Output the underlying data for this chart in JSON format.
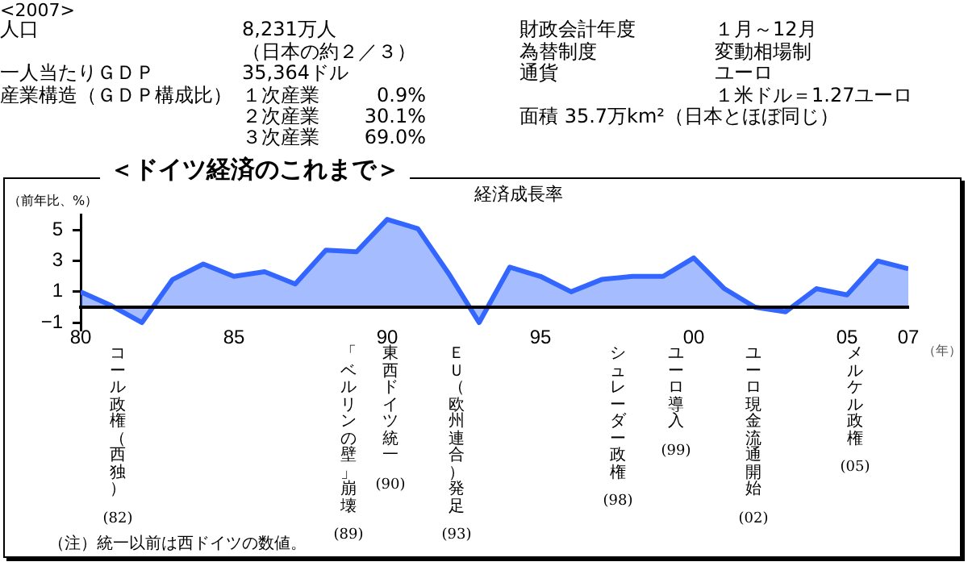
{
  "chart_data": [
    {
      "type": "other",
      "title": "<2007>",
      "annotations": [
        "人口",
        "8,231万人",
        "（日本の約２／３）",
        "一人当たりＧＤＰ",
        "35,364ドル",
        "産業構造（ＧＤＰ構成比）",
        "１次産業",
        "0.9%",
        "２次産業",
        "30.1%",
        "３次産業",
        "69.0%",
        "財政会計年度",
        "１月～12月",
        "為替制度",
        "変動相場制",
        "通貨",
        "ユーロ",
        "１米ドル＝1.27ユーロ",
        "面積 35.7万km²（日本とほぼ同じ）"
      ]
    },
    {
      "type": "area",
      "title": "＜ドイツ経済のこれまで＞",
      "subtitle": "経済成長率",
      "ylabel": "（前年比、%）",
      "xlabel": "（年）",
      "x": [
        1980,
        1981,
        1982,
        1983,
        1984,
        1985,
        1986,
        1987,
        1988,
        1989,
        1990,
        1991,
        1992,
        1993,
        1994,
        1995,
        1996,
        1997,
        1998,
        1999,
        2000,
        2001,
        2002,
        2003,
        2004,
        2005,
        2006,
        2007
      ],
      "series": [
        {
          "color": "#3366ff",
          "values": [
            1.0,
            0.1,
            -1.0,
            1.8,
            2.8,
            2.0,
            2.3,
            1.5,
            3.7,
            3.6,
            5.7,
            5.1,
            2.2,
            -1.0,
            2.6,
            2.0,
            1.0,
            1.8,
            2.0,
            2.0,
            3.2,
            1.2,
            0.0,
            -0.3,
            1.2,
            0.8,
            3.0,
            2.5
          ]
        }
      ],
      "xlim": [
        1980,
        2007
      ],
      "xticks": [
        {
          "value": 1980,
          "label": "80"
        },
        {
          "value": 1985,
          "label": "85"
        },
        {
          "value": 1990,
          "label": "90"
        },
        {
          "value": 1995,
          "label": "95"
        },
        {
          "value": 2000,
          "label": "00"
        },
        {
          "value": 2005,
          "label": "05"
        },
        {
          "value": 2007,
          "label": "07"
        }
      ],
      "ylim": [
        -1.5,
        6
      ],
      "yticks": [
        -1,
        1,
        3,
        5
      ],
      "annotations": [
        "コール政権（西独）\n(82)",
        "「ベルリンの壁」崩壊\n(89)",
        "東西ドイツ統一\n(90)",
        "ＥＵ（欧州連合）発足\n(93)",
        "シュレーダー政権\n(98)",
        "ユーロ導入\n(99)",
        "ユーロ現金流通開始\n(02)",
        "メルケル政権\n(05)",
        "（注）統一以前は西ドイツの数値。"
      ]
    }
  ]
}
